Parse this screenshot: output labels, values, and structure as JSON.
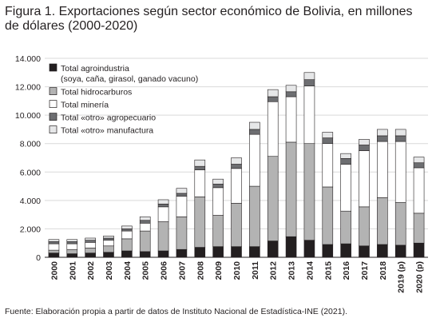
{
  "title": "Figura 1. Exportaciones según sector económico de Bolivia, en millones de dólares (2000-2020)",
  "source": "Fuente: Elaboración propia a partir de datos de Instituto Nacional de Estadística-INE (2021).",
  "chart_data": {
    "type": "bar",
    "stacked": true,
    "title": "Figura 1. Exportaciones según sector económico de Bolivia, en millones de dólares (2000-2020)",
    "xlabel": "",
    "ylabel": "",
    "ylim": [
      0,
      14000
    ],
    "yticks": [
      0,
      2000,
      4000,
      6000,
      8000,
      10000,
      12000,
      14000
    ],
    "ytick_labels": [
      "0",
      "2.000",
      "4.000",
      "6.000",
      "8.000",
      "10.000",
      "12.000",
      "14.000"
    ],
    "grid": true,
    "legend_placement": "top-left",
    "categories": [
      "2000",
      "2001",
      "2002",
      "2003",
      "2004",
      "2005",
      "2006",
      "2007",
      "2008",
      "2009",
      "2010",
      "2011",
      "2012",
      "2013",
      "2014",
      "2015",
      "2016",
      "2017",
      "2018",
      "2019 (p)",
      "2020 (p)"
    ],
    "series": [
      {
        "name": "Total agroindustria\n(soya, caña, girasol, ganado vacuno)",
        "color": "#231f20",
        "values": [
          300,
          250,
          300,
          350,
          450,
          400,
          450,
          550,
          700,
          750,
          750,
          750,
          1150,
          1450,
          1200,
          900,
          950,
          800,
          900,
          850,
          1000
        ]
      },
      {
        "name": "Total hidrocarburos",
        "color": "#b3b3b3",
        "values": [
          200,
          300,
          350,
          450,
          850,
          1450,
          2050,
          2300,
          3550,
          2200,
          3050,
          4250,
          5950,
          6650,
          6800,
          4050,
          2300,
          2750,
          3300,
          3000,
          2100
        ]
      },
      {
        "name": "Total minería",
        "color": "#ffffff",
        "values": [
          450,
          400,
          400,
          400,
          550,
          550,
          1050,
          1450,
          1900,
          1950,
          2450,
          3650,
          3850,
          3200,
          4050,
          3050,
          3300,
          3950,
          3950,
          4300,
          3200
        ]
      },
      {
        "name": "Total «otro» agropecuario",
        "color": "#6d6e71",
        "values": [
          150,
          150,
          150,
          150,
          150,
          200,
          200,
          200,
          250,
          250,
          300,
          350,
          350,
          350,
          450,
          400,
          400,
          400,
          400,
          400,
          350
        ]
      },
      {
        "name": "Total «otro» manufactura",
        "color": "#e6e7e8",
        "values": [
          150,
          150,
          150,
          150,
          200,
          250,
          300,
          350,
          450,
          350,
          450,
          500,
          500,
          450,
          500,
          400,
          350,
          400,
          450,
          450,
          400
        ]
      }
    ]
  }
}
